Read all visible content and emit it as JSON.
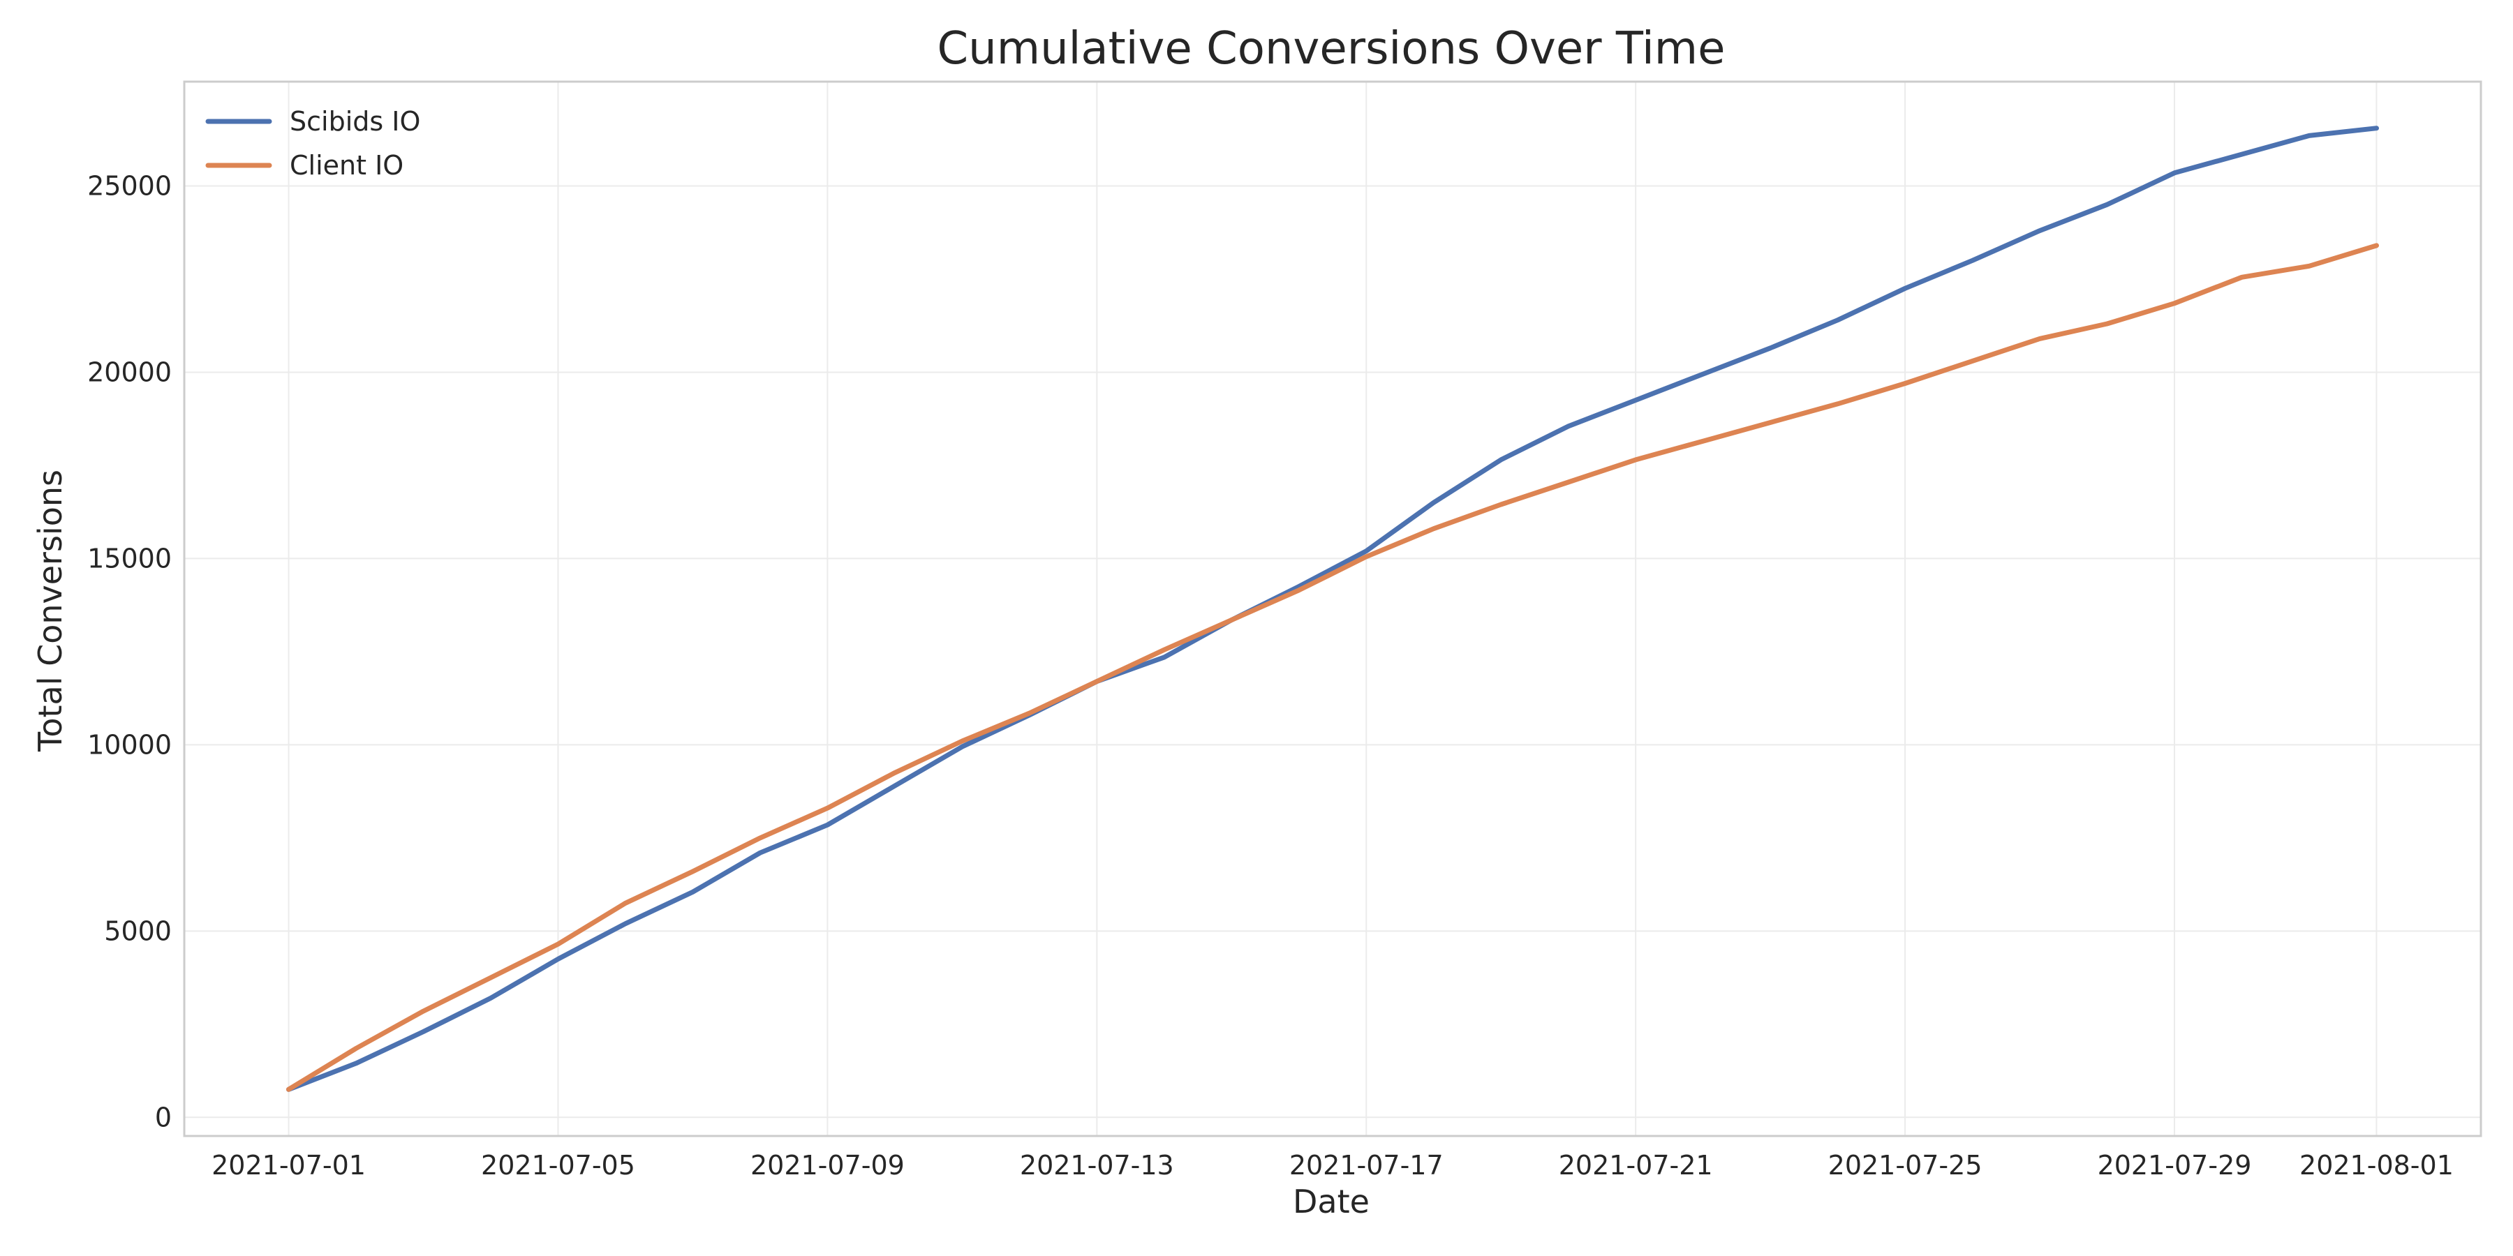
{
  "chart_data": {
    "type": "line",
    "title": "Cumulative Conversions Over Time",
    "xlabel": "Date",
    "ylabel": "Total Conversions",
    "x": [
      "2021-07-01",
      "2021-07-02",
      "2021-07-03",
      "2021-07-04",
      "2021-07-05",
      "2021-07-06",
      "2021-07-07",
      "2021-07-08",
      "2021-07-09",
      "2021-07-10",
      "2021-07-11",
      "2021-07-12",
      "2021-07-13",
      "2021-07-14",
      "2021-07-15",
      "2021-07-16",
      "2021-07-17",
      "2021-07-18",
      "2021-07-19",
      "2021-07-20",
      "2021-07-21",
      "2021-07-22",
      "2021-07-23",
      "2021-07-24",
      "2021-07-25",
      "2021-07-26",
      "2021-07-27",
      "2021-07-28",
      "2021-07-29",
      "2021-07-30",
      "2021-07-31",
      "2021-08-01"
    ],
    "x_ticks": [
      "2021-07-01",
      "2021-07-05",
      "2021-07-09",
      "2021-07-13",
      "2021-07-17",
      "2021-07-21",
      "2021-07-25",
      "2021-07-29",
      "2021-08-01"
    ],
    "y_ticks": [
      0,
      5000,
      10000,
      15000,
      20000,
      25000
    ],
    "ylim": [
      -500,
      27800
    ],
    "xlim": [
      "2021-06-29.45",
      "2021-08-02.55"
    ],
    "grid": true,
    "legend_position": "top-left",
    "series": [
      {
        "name": "Scibids IO",
        "color": "#4c72b0",
        "values": [
          750,
          1450,
          2300,
          3200,
          4250,
          5200,
          6050,
          7100,
          7850,
          8900,
          9950,
          10800,
          11700,
          12350,
          13350,
          14250,
          15200,
          16500,
          17650,
          18550,
          19250,
          19950,
          20650,
          21400,
          22250,
          23000,
          23800,
          24500,
          25350,
          25850,
          26350,
          26550
        ]
      },
      {
        "name": "Client IO",
        "color": "#dd8452",
        "values": [
          750,
          1850,
          2850,
          3750,
          4650,
          5750,
          6600,
          7500,
          8300,
          9250,
          10100,
          10850,
          11700,
          12550,
          13350,
          14150,
          15050,
          15800,
          16450,
          17050,
          17650,
          18150,
          18650,
          19150,
          19700,
          20300,
          20900,
          21300,
          21850,
          22550,
          22850,
          23400
        ]
      }
    ]
  }
}
